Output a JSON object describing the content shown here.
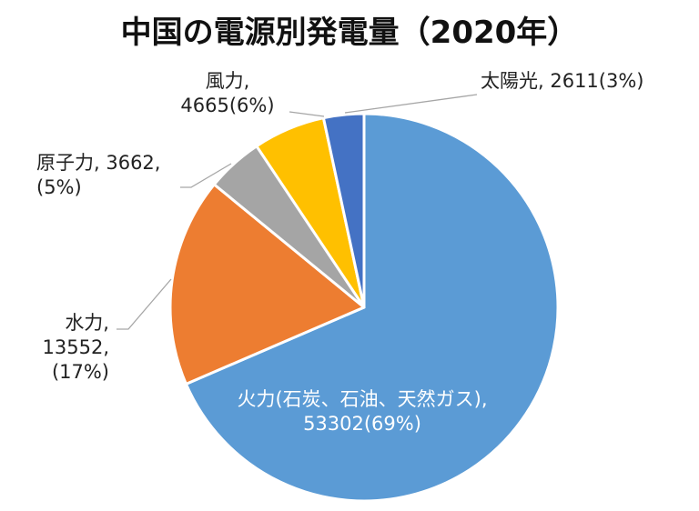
{
  "title": "中国の電源別発電量（2020年）",
  "chart_data": {
    "type": "pie",
    "title": "中国の電源別発電量（2020年）",
    "slices": [
      {
        "name": "火力(石炭、石油、天然ガス)",
        "value": 53302,
        "percent": "69%",
        "color": "#5b9bd5",
        "label_lines": [
          "火力(石炭、石油、天然ガス),",
          "53302(69%)"
        ]
      },
      {
        "name": "水力",
        "value": 13552,
        "percent": "17%",
        "color": "#ed7d31",
        "label_lines": [
          "水力,",
          "13552,",
          "(17%)"
        ]
      },
      {
        "name": "原子力",
        "value": 3662,
        "percent": "5%",
        "color": "#a5a5a5",
        "label_lines": [
          "原子力, 3662,",
          "(5%)"
        ]
      },
      {
        "name": "風力",
        "value": 4665,
        "percent": "6%",
        "color": "#ffc000",
        "label_lines": [
          "風力,",
          "4665(6%)"
        ]
      },
      {
        "name": "太陽光",
        "value": 2611,
        "percent": "3%",
        "color": "#4472c4",
        "label_lines": [
          "太陽光, 2611(3%)"
        ]
      }
    ]
  }
}
